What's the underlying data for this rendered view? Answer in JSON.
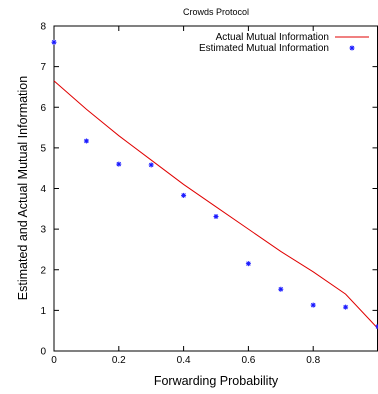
{
  "chart_data": {
    "type": "scatter",
    "title": "Crowds Protocol",
    "xlabel": "Forwarding Probability",
    "ylabel": "Estimated and Actual Mutual Information",
    "xlim": [
      0,
      1
    ],
    "ylim": [
      0,
      8
    ],
    "x_ticks": [
      "0",
      "0.2",
      "0.4",
      "0.6",
      "0.8"
    ],
    "y_ticks": [
      "0",
      "1",
      "2",
      "3",
      "4",
      "5",
      "6",
      "7",
      "8"
    ],
    "grid": false,
    "legend_position": "top-right",
    "series": [
      {
        "name": "Actual Mutual Information",
        "kind": "line",
        "color": "#e00000",
        "x": [
          0,
          0.1,
          0.2,
          0.3,
          0.4,
          0.5,
          0.6,
          0.7,
          0.8,
          0.9,
          1.0
        ],
        "y": [
          6.65,
          5.95,
          5.3,
          4.7,
          4.1,
          3.55,
          3.0,
          2.45,
          1.95,
          1.4,
          0.55
        ]
      },
      {
        "name": "Estimated Mutual Information",
        "kind": "points",
        "color": "#1a1aff",
        "x": [
          0,
          0.1,
          0.2,
          0.3,
          0.4,
          0.5,
          0.6,
          0.7,
          0.8,
          0.9,
          1.0
        ],
        "y": [
          7.6,
          5.17,
          4.6,
          4.58,
          3.83,
          3.31,
          2.15,
          1.52,
          1.13,
          1.08,
          0.6
        ]
      }
    ]
  }
}
